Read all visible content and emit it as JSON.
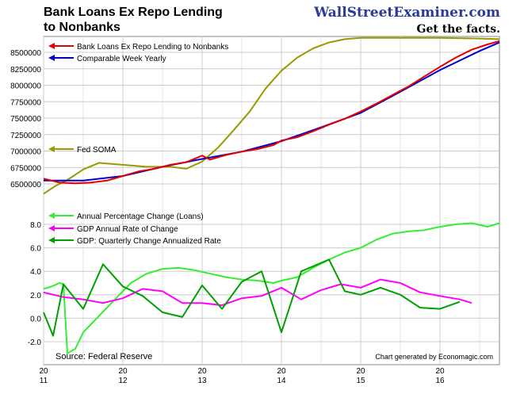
{
  "header": {
    "title_line1": "Bank Loans Ex Repo Lending",
    "title_line2": "to Nonbanks",
    "brand": "WallStreetExaminer.com",
    "tagline": "Get the facts."
  },
  "footer": {
    "source": "Source: Federal Reserve",
    "generated": "Chart generated by Economagic.com"
  },
  "colors": {
    "loans": "#e00000",
    "comparable": "#0000cc",
    "soma": "#999900",
    "annual_change": "#33ee33",
    "gdp_annual": "#ff00ff",
    "gdp_quarterly": "#00a000",
    "arrow": "#e00000"
  },
  "chart_data": [
    {
      "type": "line",
      "panel": "upper",
      "ylim": [
        6400000,
        8700000
      ],
      "yticks": [
        6500000,
        6750000,
        7000000,
        7250000,
        7500000,
        7750000,
        8000000,
        8250000,
        8500000
      ],
      "ytick_labels": [
        "6500000",
        "6750000",
        "7000000",
        "7250000",
        "7500000",
        "7750000",
        "8000000",
        "8250000",
        "8500000"
      ],
      "series": [
        {
          "name": "Bank Loans Ex Repo Lending to Nonbanks",
          "color": "#e00000",
          "points": [
            [
              2011.0,
              6580000
            ],
            [
              2011.2,
              6520000
            ],
            [
              2011.4,
              6510000
            ],
            [
              2011.6,
              6520000
            ],
            [
              2011.8,
              6550000
            ],
            [
              2012.0,
              6620000
            ],
            [
              2012.2,
              6690000
            ],
            [
              2012.4,
              6730000
            ],
            [
              2012.6,
              6790000
            ],
            [
              2012.8,
              6830000
            ],
            [
              2013.0,
              6930000
            ],
            [
              2013.1,
              6870000
            ],
            [
              2013.3,
              6940000
            ],
            [
              2013.5,
              6990000
            ],
            [
              2013.7,
              7030000
            ],
            [
              2013.9,
              7090000
            ],
            [
              2014.0,
              7160000
            ],
            [
              2014.2,
              7210000
            ],
            [
              2014.4,
              7300000
            ],
            [
              2014.6,
              7400000
            ],
            [
              2014.8,
              7490000
            ],
            [
              2015.0,
              7600000
            ],
            [
              2015.2,
              7720000
            ],
            [
              2015.4,
              7850000
            ],
            [
              2015.6,
              7980000
            ],
            [
              2015.8,
              8130000
            ],
            [
              2016.0,
              8280000
            ],
            [
              2016.2,
              8420000
            ],
            [
              2016.4,
              8540000
            ],
            [
              2016.6,
              8620000
            ],
            [
              2016.75,
              8670000
            ]
          ]
        },
        {
          "name": "Comparable Week Yearly",
          "color": "#0000cc",
          "points": [
            [
              2011.0,
              6550000
            ],
            [
              2011.5,
              6550000
            ],
            [
              2012.0,
              6620000
            ],
            [
              2012.5,
              6760000
            ],
            [
              2013.0,
              6880000
            ],
            [
              2013.5,
              6990000
            ],
            [
              2014.0,
              7150000
            ],
            [
              2014.5,
              7360000
            ],
            [
              2015.0,
              7580000
            ],
            [
              2015.5,
              7900000
            ],
            [
              2016.0,
              8230000
            ],
            [
              2016.5,
              8520000
            ],
            [
              2016.75,
              8650000
            ]
          ]
        },
        {
          "name": "Fed SOMA",
          "color": "#999900",
          "points": [
            [
              2011.0,
              6350000
            ],
            [
              2011.15,
              6470000
            ],
            [
              2011.3,
              6560000
            ],
            [
              2011.5,
              6720000
            ],
            [
              2011.7,
              6820000
            ],
            [
              2011.9,
              6800000
            ],
            [
              2012.0,
              6790000
            ],
            [
              2012.3,
              6760000
            ],
            [
              2012.6,
              6760000
            ],
            [
              2012.8,
              6730000
            ],
            [
              2013.0,
              6840000
            ],
            [
              2013.2,
              7050000
            ],
            [
              2013.4,
              7320000
            ],
            [
              2013.6,
              7600000
            ],
            [
              2013.8,
              7950000
            ],
            [
              2014.0,
              8220000
            ],
            [
              2014.2,
              8420000
            ],
            [
              2014.4,
              8560000
            ],
            [
              2014.6,
              8650000
            ],
            [
              2014.8,
              8700000
            ],
            [
              2015.0,
              8720000
            ],
            [
              2015.5,
              8720000
            ],
            [
              2016.0,
              8720000
            ],
            [
              2016.5,
              8710000
            ],
            [
              2016.75,
              8700000
            ]
          ]
        }
      ]
    },
    {
      "type": "line",
      "panel": "lower",
      "ylim": [
        -3.5,
        10.0
      ],
      "yticks": [
        -2.0,
        0.0,
        2.0,
        4.0,
        6.0,
        8.0
      ],
      "ytick_labels": [
        "-2.0",
        "0.0",
        "2.0",
        "4.0",
        "6.0",
        "8.0"
      ],
      "series": [
        {
          "name": "Annual Percentage Change (Loans)",
          "color": "#33ee33",
          "points": [
            [
              2011.0,
              2.5
            ],
            [
              2011.1,
              2.7
            ],
            [
              2011.2,
              3.0
            ],
            [
              2011.25,
              2.9
            ],
            [
              2011.3,
              -3.0
            ],
            [
              2011.4,
              -2.6
            ],
            [
              2011.5,
              -1.2
            ],
            [
              2011.7,
              0.2
            ],
            [
              2011.9,
              1.6
            ],
            [
              2012.1,
              3.0
            ],
            [
              2012.3,
              3.8
            ],
            [
              2012.5,
              4.2
            ],
            [
              2012.7,
              4.3
            ],
            [
              2012.9,
              4.1
            ],
            [
              2013.1,
              3.8
            ],
            [
              2013.3,
              3.5
            ],
            [
              2013.5,
              3.3
            ],
            [
              2013.7,
              3.2
            ],
            [
              2013.9,
              3.0
            ],
            [
              2014.0,
              3.2
            ],
            [
              2014.2,
              3.5
            ],
            [
              2014.4,
              4.3
            ],
            [
              2014.6,
              5.0
            ],
            [
              2014.8,
              5.6
            ],
            [
              2015.0,
              6.0
            ],
            [
              2015.2,
              6.7
            ],
            [
              2015.4,
              7.2
            ],
            [
              2015.6,
              7.4
            ],
            [
              2015.8,
              7.5
            ],
            [
              2016.0,
              7.8
            ],
            [
              2016.2,
              8.0
            ],
            [
              2016.4,
              8.1
            ],
            [
              2016.6,
              7.8
            ],
            [
              2016.75,
              8.1
            ]
          ]
        },
        {
          "name": "GDP Annual Rate of Change",
          "color": "#ff00ff",
          "points": [
            [
              2011.0,
              2.2
            ],
            [
              2011.25,
              1.8
            ],
            [
              2011.5,
              1.6
            ],
            [
              2011.75,
              1.3
            ],
            [
              2012.0,
              1.7
            ],
            [
              2012.25,
              2.5
            ],
            [
              2012.5,
              2.3
            ],
            [
              2012.75,
              1.3
            ],
            [
              2013.0,
              1.3
            ],
            [
              2013.25,
              1.1
            ],
            [
              2013.5,
              1.7
            ],
            [
              2013.75,
              1.9
            ],
            [
              2014.0,
              2.6
            ],
            [
              2014.25,
              1.6
            ],
            [
              2014.5,
              2.4
            ],
            [
              2014.75,
              2.9
            ],
            [
              2015.0,
              2.6
            ],
            [
              2015.25,
              3.3
            ],
            [
              2015.5,
              3.0
            ],
            [
              2015.75,
              2.2
            ],
            [
              2016.0,
              1.9
            ],
            [
              2016.25,
              1.6
            ],
            [
              2016.4,
              1.3
            ]
          ]
        },
        {
          "name": "GDP: Quarterly Change Annualized Rate",
          "color": "#00a000",
          "points": [
            [
              2011.0,
              0.5
            ],
            [
              2011.12,
              -1.5
            ],
            [
              2011.25,
              2.9
            ],
            [
              2011.5,
              0.8
            ],
            [
              2011.75,
              4.6
            ],
            [
              2012.0,
              2.7
            ],
            [
              2012.25,
              1.9
            ],
            [
              2012.5,
              0.5
            ],
            [
              2012.75,
              0.1
            ],
            [
              2013.0,
              2.8
            ],
            [
              2013.25,
              0.8
            ],
            [
              2013.5,
              3.1
            ],
            [
              2013.75,
              4.0
            ],
            [
              2014.0,
              -1.2
            ],
            [
              2014.25,
              4.0
            ],
            [
              2014.6,
              5.0
            ],
            [
              2014.8,
              2.3
            ],
            [
              2015.0,
              2.0
            ],
            [
              2015.25,
              2.6
            ],
            [
              2015.5,
              2.0
            ],
            [
              2015.75,
              0.9
            ],
            [
              2016.0,
              0.8
            ],
            [
              2016.25,
              1.4
            ]
          ]
        }
      ]
    }
  ],
  "xaxis": {
    "xlim": [
      2011.0,
      2016.75
    ],
    "ticks": [
      2011,
      2012,
      2013,
      2014,
      2015,
      2016
    ],
    "tick_top": [
      "20",
      "20",
      "20",
      "20",
      "20",
      "20"
    ],
    "tick_bottom": [
      "11",
      "12",
      "13",
      "14",
      "15",
      "16"
    ]
  }
}
